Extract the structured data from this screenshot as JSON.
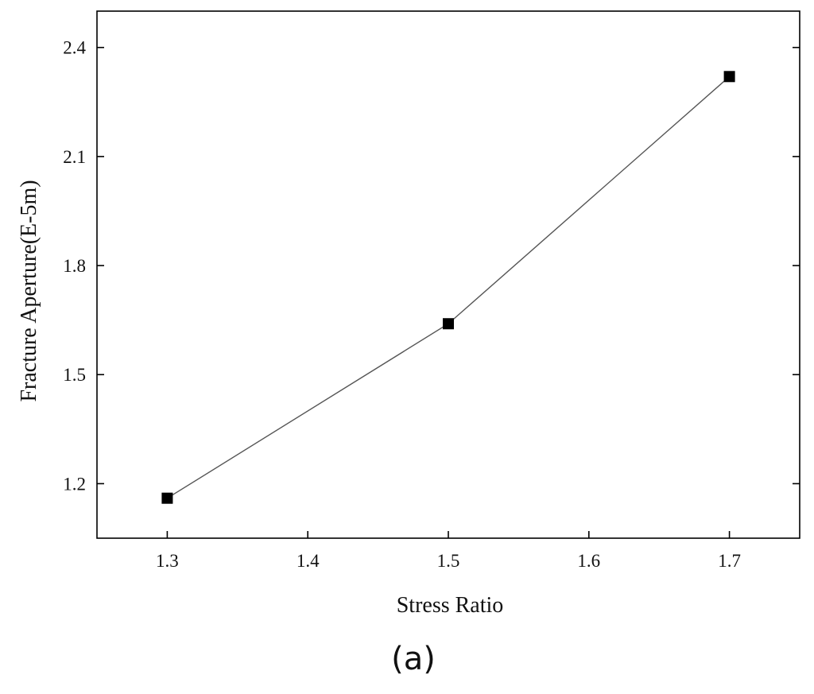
{
  "chart_data": {
    "type": "line",
    "xlabel": "Stress Ratio",
    "ylabel": "Fracture Aperture(E-5m)",
    "panel_label": "(a)",
    "xlim": [
      1.25,
      1.75
    ],
    "ylim": [
      1.05,
      2.5
    ],
    "x_ticks": [
      "1.3",
      "1.4",
      "1.5",
      "1.6",
      "1.7"
    ],
    "y_ticks": [
      "1.2",
      "1.5",
      "1.8",
      "2.1",
      "2.4"
    ],
    "grid": false,
    "legend": "none",
    "series": [
      {
        "x": [
          1.3,
          1.5,
          1.7
        ],
        "y": [
          1.16,
          1.64,
          2.32
        ],
        "marker": "square",
        "color": "#000000",
        "line_color": "#555555"
      }
    ]
  }
}
